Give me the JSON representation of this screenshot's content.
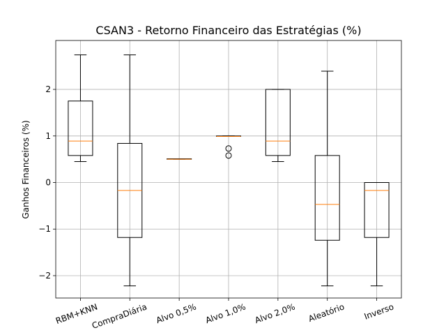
{
  "chart_data": {
    "type": "box",
    "title": "CSAN3 - Retorno Financeiro das Estratégias (%)",
    "xlabel": "",
    "ylabel": "Ganhos Financeiros (%)",
    "ylim": [
      -2.48,
      3.05
    ],
    "yticks": [
      -2,
      -1,
      0,
      1,
      2
    ],
    "grid": true,
    "median_color": "#ff7f0e",
    "categories": [
      "RBM+KNN",
      "CompraDiária",
      "Alvo 0,5%",
      "Alvo 1,0%",
      "Alvo 2,0%",
      "Aleatório",
      "Inverso"
    ],
    "boxes": [
      {
        "whislo": 0.45,
        "q1": 0.58,
        "med": 0.89,
        "q3": 1.75,
        "whishi": 2.74,
        "fliers": []
      },
      {
        "whislo": -2.22,
        "q1": -1.18,
        "med": -0.17,
        "q3": 0.84,
        "whishi": 2.74,
        "fliers": []
      },
      {
        "whislo": 0.5,
        "q1": 0.5,
        "med": 0.5,
        "q3": 0.51,
        "whishi": 0.51,
        "fliers": []
      },
      {
        "whislo": 0.99,
        "q1": 0.99,
        "med": 0.99,
        "q3": 1.0,
        "whishi": 1.0,
        "fliers": [
          0.73,
          0.58
        ]
      },
      {
        "whislo": 0.45,
        "q1": 0.58,
        "med": 0.89,
        "q3": 2.0,
        "whishi": 2.0,
        "fliers": []
      },
      {
        "whislo": -2.22,
        "q1": -1.24,
        "med": -0.47,
        "q3": 0.58,
        "whishi": 2.39,
        "fliers": []
      },
      {
        "whislo": -2.22,
        "q1": -1.18,
        "med": -0.17,
        "q3": 0.0,
        "whishi": 0.0,
        "fliers": []
      }
    ]
  }
}
